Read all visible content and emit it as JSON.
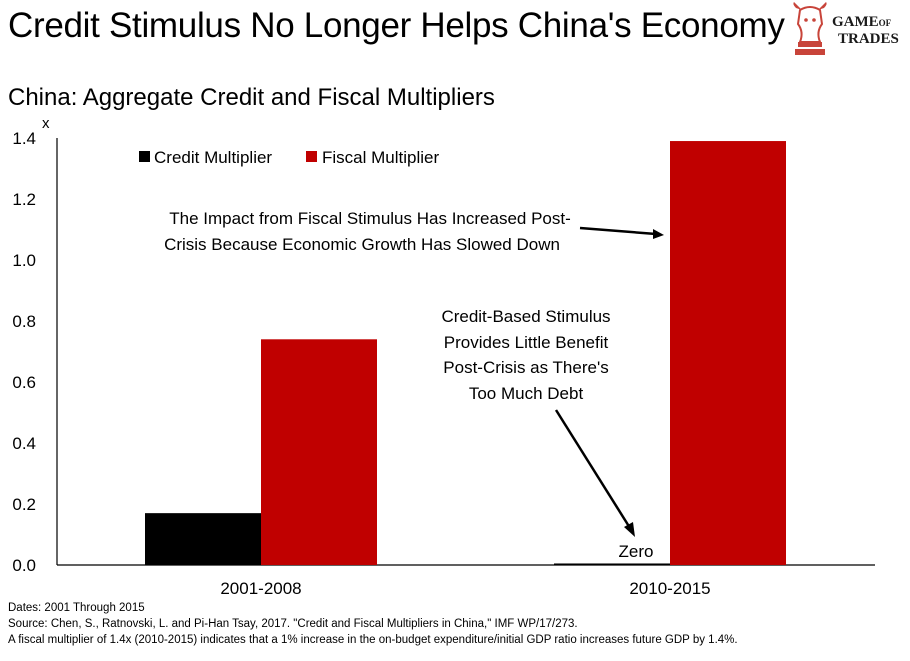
{
  "header": {
    "title": "Credit Stimulus No Longer Helps China's Economy",
    "logo": {
      "line1": "GAME",
      "of": "OF",
      "line2": "TRADES"
    }
  },
  "chart_data": {
    "type": "bar",
    "title": "China: Aggregate Credit and Fiscal Multipliers",
    "ylabel": "x",
    "xlabel": "",
    "ylim": [
      0,
      1.4
    ],
    "yticks": [
      "0.0",
      "0.2",
      "0.4",
      "0.6",
      "0.8",
      "1.0",
      "1.2",
      "1.4"
    ],
    "categories": [
      "2001-2008",
      "2010-2015"
    ],
    "series": [
      {
        "name": "Credit Multiplier",
        "color": "#000000",
        "values": [
          0.17,
          0.005
        ]
      },
      {
        "name": "Fiscal Multiplier",
        "color": "#c00000",
        "values": [
          0.74,
          1.39
        ]
      }
    ],
    "legend_position": "top-left",
    "annotations": {
      "fiscal_line1": "The Impact from Fiscal Stimulus Has Increased Post-",
      "fiscal_line2": "Crisis Because Economic Growth Has Slowed Down",
      "credit_lines": [
        "Credit-Based Stimulus",
        "Provides Little Benefit",
        "Post-Crisis as There's",
        "Too Much Debt"
      ],
      "zero_label": "Zero"
    }
  },
  "footnotes": {
    "dates": "Dates: 2001 Through 2015",
    "source": "Source: Chen, S., Ratnovski, L. and Pi-Han Tsay, 2017. \"Credit and Fiscal Multipliers in China,\" IMF WP/17/273.",
    "note": "A fiscal multiplier of 1.4x (2010-2015) indicates that a 1% increase in the on-budget expenditure/initial GDP ratio increases future GDP by 1.4%."
  }
}
